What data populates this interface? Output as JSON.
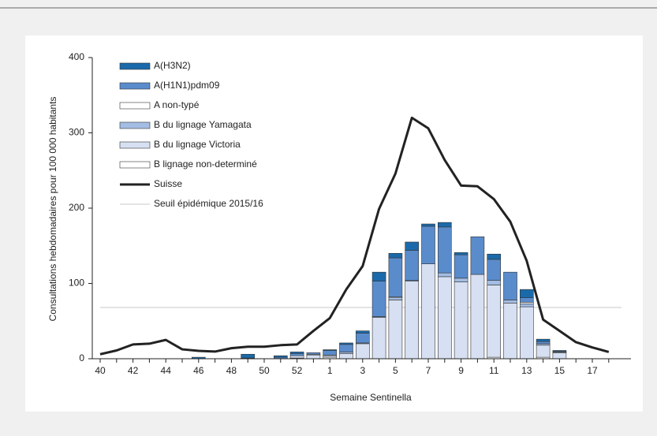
{
  "chart_data": {
    "type": "bar",
    "stacked": true,
    "x_label": "Semaine Sentinella",
    "y_label": "Consultations hebdomadaires pour 100 000 habitants",
    "categories": [
      "40",
      null,
      "42",
      null,
      "44",
      null,
      "46",
      null,
      "48",
      null,
      "50",
      null,
      "52",
      null,
      "1",
      null,
      "3",
      null,
      "5",
      null,
      "7",
      null,
      "9",
      null,
      "11",
      null,
      "13",
      null,
      "15",
      null,
      "17",
      null
    ],
    "ylim": [
      0,
      400
    ],
    "yticks": [
      0,
      100,
      200,
      300,
      400
    ],
    "series": [
      {
        "name": "A(H3N2)",
        "color": "#1a6aab",
        "values": [
          0,
          0,
          0,
          0,
          0,
          0,
          2,
          0,
          0,
          5,
          0,
          2,
          2,
          0,
          1,
          2,
          3,
          12,
          6,
          11,
          3,
          6,
          3,
          0,
          7,
          0,
          11,
          3,
          1,
          0,
          0,
          0
        ]
      },
      {
        "name": "A(H1N1)pdm09",
        "color": "#5a8ccc",
        "values": [
          0,
          0,
          0,
          0,
          0,
          0,
          0,
          0,
          0,
          1,
          0,
          2,
          3,
          2,
          6,
          10,
          13,
          47,
          52,
          40,
          50,
          61,
          31,
          50,
          28,
          37,
          6,
          3,
          1,
          0,
          0,
          0
        ]
      },
      {
        "name": "A non-typé",
        "color": "#ffffff",
        "values": [
          0,
          0,
          0,
          0,
          0,
          0,
          0,
          0,
          0,
          0,
          0,
          0,
          0,
          0,
          0,
          0,
          0,
          0,
          1,
          0,
          0,
          0,
          0,
          0,
          0,
          0,
          2,
          0,
          0,
          0,
          0,
          0
        ]
      },
      {
        "name": "B du lignage Yamagata",
        "color": "#a3bde3",
        "values": [
          0,
          0,
          0,
          0,
          0,
          0,
          0,
          0,
          0,
          0,
          0,
          0,
          0,
          1,
          1,
          2,
          1,
          1,
          3,
          1,
          0,
          5,
          5,
          0,
          6,
          4,
          4,
          2,
          1,
          0,
          0,
          0
        ]
      },
      {
        "name": "B du lignage Victoria",
        "color": "#d6e0f2",
        "values": [
          0,
          0,
          0,
          0,
          0,
          0,
          0,
          0,
          0,
          0,
          0,
          0,
          3,
          5,
          2,
          7,
          20,
          55,
          78,
          103,
          126,
          109,
          102,
          112,
          96,
          74,
          69,
          16,
          8,
          0,
          0,
          0
        ]
      },
      {
        "name": "B lignage non-determiné",
        "color": "#ffffff",
        "values": [
          0,
          0,
          0,
          0,
          0,
          0,
          0,
          0,
          0,
          0,
          0,
          0,
          1,
          0,
          2,
          0,
          0,
          0,
          0,
          0,
          0,
          0,
          0,
          0,
          2,
          0,
          0,
          2,
          0,
          0,
          0,
          0
        ]
      },
      {
        "name": "Suisse",
        "type": "line",
        "color": "#222222",
        "values": [
          6,
          11,
          19,
          20,
          25,
          12.5,
          10.5,
          9.5,
          14,
          16,
          16,
          18,
          19,
          37,
          54,
          92,
          123,
          199,
          246,
          320,
          306,
          264,
          230,
          229,
          212,
          182,
          130,
          52,
          37,
          22,
          15,
          9
        ]
      }
    ],
    "threshold": {
      "name": "Seuil épidémique 2015/16",
      "value": 68,
      "color": "#c8c8c8"
    }
  }
}
